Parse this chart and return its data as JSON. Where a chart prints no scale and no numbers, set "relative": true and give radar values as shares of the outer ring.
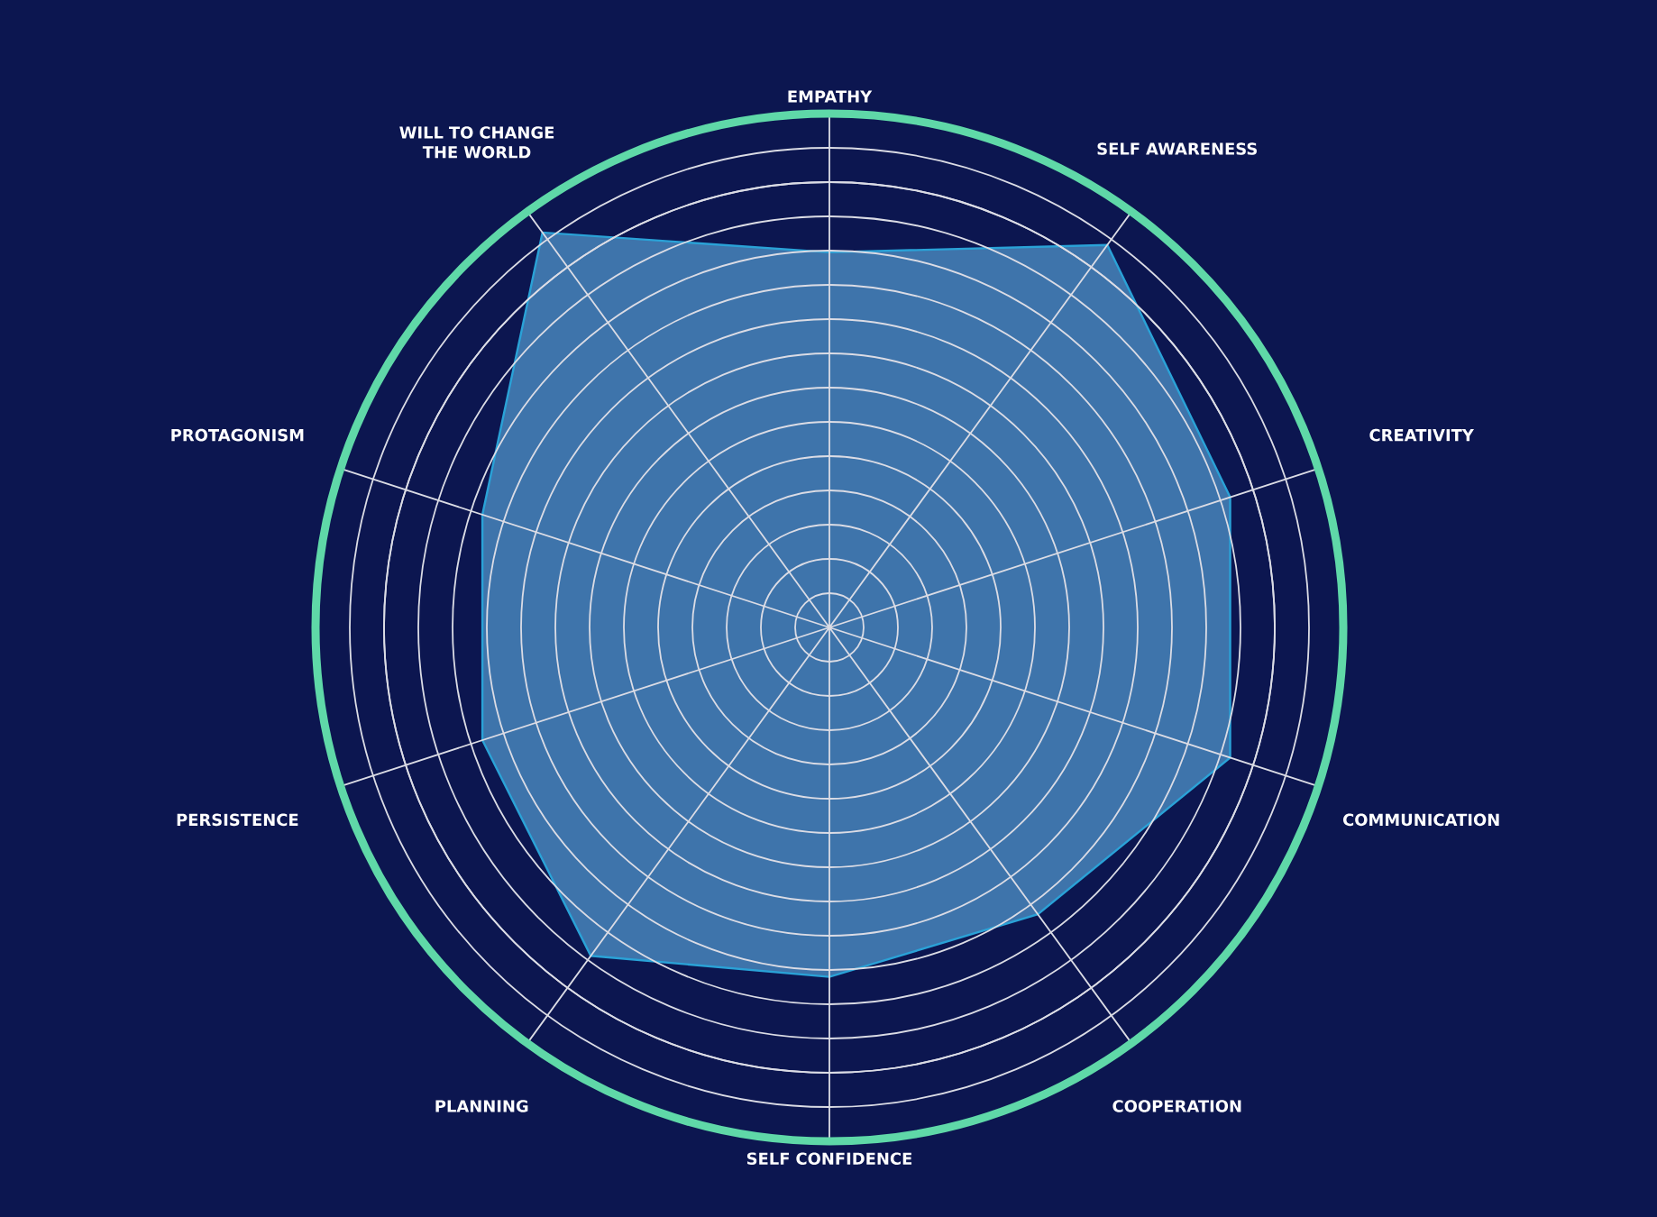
{
  "chart_data": {
    "type": "radar",
    "relative": true,
    "grid": true,
    "categories": [
      "EMPATHY",
      "SELF AWARENESS",
      "CREATIVITY",
      "COMMUNICATION",
      "COOPERATION",
      "SELF CONFIDENCE",
      "PLANNING",
      "PERSISTENCE",
      "PROTAGONISM",
      "WILL TO CHANGE THE WORLD"
    ],
    "series": [
      {
        "color": "#3e74ab",
        "values": [
          0.73,
          0.92,
          0.82,
          0.82,
          0.69,
          0.68,
          0.79,
          0.71,
          0.71,
          0.95
        ]
      }
    ]
  }
}
